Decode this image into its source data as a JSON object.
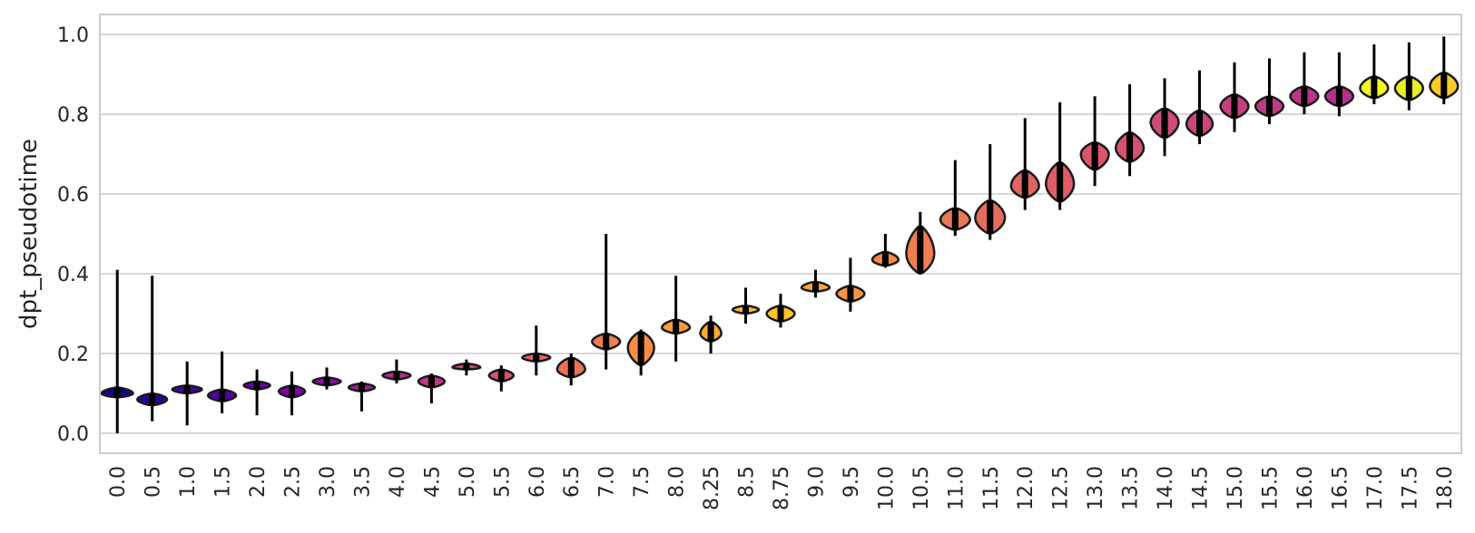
{
  "chart_data": {
    "type": "violin",
    "title": "",
    "xlabel": "",
    "ylabel": "dpt_pseudotime",
    "ylim": [
      -0.05,
      1.05
    ],
    "yticks": [
      "0.0",
      "0.2",
      "0.4",
      "0.6",
      "0.8",
      "1.0"
    ],
    "grid": true,
    "legend": "none",
    "categories": [
      "0.0",
      "0.5",
      "1.0",
      "1.5",
      "2.0",
      "2.5",
      "3.0",
      "3.5",
      "4.0",
      "4.5",
      "5.0",
      "5.5",
      "6.0",
      "6.5",
      "7.0",
      "7.5",
      "8.0",
      "8.25",
      "8.5",
      "8.75",
      "9.0",
      "9.5",
      "10.0",
      "10.5",
      "11.0",
      "11.5",
      "12.0",
      "12.5",
      "13.0",
      "13.5",
      "14.0",
      "14.5",
      "15.0",
      "15.5",
      "16.0",
      "16.5",
      "17.0",
      "17.5",
      "18.0"
    ],
    "medians": [
      0.1,
      0.085,
      0.11,
      0.095,
      0.12,
      0.105,
      0.13,
      0.115,
      0.145,
      0.13,
      0.165,
      0.145,
      0.19,
      0.16,
      0.23,
      0.215,
      0.265,
      0.25,
      0.31,
      0.3,
      0.365,
      0.35,
      0.435,
      0.45,
      0.535,
      0.54,
      0.62,
      0.625,
      0.7,
      0.715,
      0.78,
      0.775,
      0.82,
      0.82,
      0.845,
      0.845,
      0.865,
      0.865,
      0.87
    ],
    "q_low": [
      0.09,
      0.07,
      0.1,
      0.08,
      0.11,
      0.09,
      0.12,
      0.105,
      0.135,
      0.115,
      0.16,
      0.13,
      0.18,
      0.14,
      0.21,
      0.17,
      0.25,
      0.23,
      0.3,
      0.28,
      0.355,
      0.33,
      0.42,
      0.4,
      0.51,
      0.5,
      0.59,
      0.58,
      0.66,
      0.68,
      0.74,
      0.745,
      0.79,
      0.795,
      0.82,
      0.82,
      0.84,
      0.835,
      0.84
    ],
    "q_high": [
      0.115,
      0.1,
      0.12,
      0.11,
      0.13,
      0.12,
      0.14,
      0.125,
      0.155,
      0.145,
      0.175,
      0.16,
      0.2,
      0.19,
      0.25,
      0.255,
      0.285,
      0.28,
      0.32,
      0.32,
      0.38,
      0.37,
      0.455,
      0.52,
      0.565,
      0.585,
      0.66,
      0.68,
      0.73,
      0.755,
      0.815,
      0.81,
      0.85,
      0.845,
      0.87,
      0.87,
      0.895,
      0.895,
      0.905
    ],
    "mins": [
      0.0,
      0.03,
      0.02,
      0.05,
      0.045,
      0.045,
      0.11,
      0.055,
      0.125,
      0.075,
      0.145,
      0.105,
      0.145,
      0.12,
      0.16,
      0.145,
      0.18,
      0.2,
      0.275,
      0.265,
      0.34,
      0.305,
      0.415,
      0.4,
      0.495,
      0.485,
      0.56,
      0.56,
      0.62,
      0.645,
      0.695,
      0.725,
      0.755,
      0.775,
      0.8,
      0.795,
      0.825,
      0.81,
      0.825
    ],
    "maxs": [
      0.41,
      0.395,
      0.18,
      0.205,
      0.16,
      0.155,
      0.165,
      0.13,
      0.185,
      0.15,
      0.185,
      0.17,
      0.27,
      0.2,
      0.5,
      0.26,
      0.395,
      0.295,
      0.365,
      0.35,
      0.41,
      0.44,
      0.5,
      0.555,
      0.685,
      0.725,
      0.79,
      0.83,
      0.845,
      0.875,
      0.89,
      0.91,
      0.93,
      0.94,
      0.955,
      0.955,
      0.975,
      0.98,
      0.995
    ],
    "widths": [
      0.9,
      0.85,
      0.85,
      0.8,
      0.75,
      0.75,
      0.8,
      0.75,
      0.8,
      0.75,
      0.8,
      0.7,
      0.8,
      0.8,
      0.8,
      0.75,
      0.8,
      0.6,
      0.75,
      0.8,
      0.8,
      0.8,
      0.75,
      0.8,
      0.85,
      0.85,
      0.8,
      0.8,
      0.8,
      0.8,
      0.8,
      0.75,
      0.8,
      0.8,
      0.8,
      0.8,
      0.8,
      0.8,
      0.8
    ],
    "colors": [
      "#0d0887",
      "#2a0593",
      "#41049d",
      "#5601a4",
      "#6a00a8",
      "#7e03a8",
      "#8f0da4",
      "#a11b9b",
      "#b12a90",
      "#bf3984",
      "#cc4778",
      "#d6556d",
      "#e16462",
      "#e97158",
      "#f07f4f",
      "#f68d45",
      "#fb9b3c",
      "#fdab32",
      "#fdb42f",
      "#fdc328",
      "#fca636",
      "#f89540",
      "#f48849",
      "#ef7e50",
      "#eb7655",
      "#e66c5c",
      "#e16462",
      "#dd5e66",
      "#d8576b",
      "#d45270",
      "#cf4c74",
      "#ca457a",
      "#c5407e",
      "#c03a83",
      "#bb3488",
      "#b6308b",
      "#f0f921",
      "#e8ee25",
      "#fdca26"
    ]
  }
}
